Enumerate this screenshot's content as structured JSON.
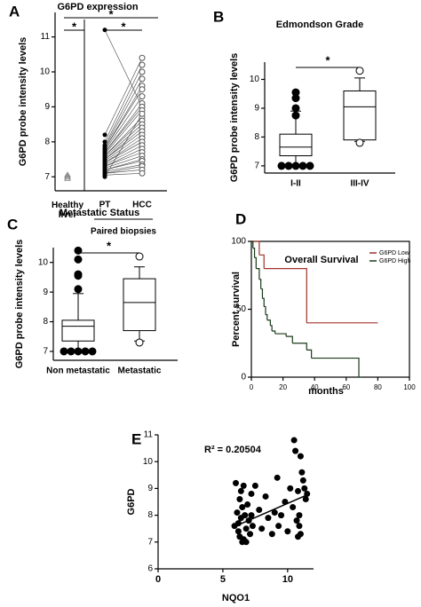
{
  "chart_data": [
    {
      "type": "paired",
      "panel": "A",
      "title": "G6PD expression",
      "ylabel": "G6PD probe intensity levels",
      "categories": [
        "Healthy liver",
        "PT",
        "HCC"
      ],
      "group_label": "Paired biopsies",
      "significance": [
        "*",
        "*",
        "*"
      ],
      "ylim": [
        6.6,
        11.7
      ],
      "yticks": [
        7,
        8,
        9,
        10,
        11
      ],
      "healthy_values": [
        7.0,
        7.05,
        6.95
      ],
      "pt_values": [
        11.2,
        8.2,
        8.0,
        7.9,
        7.85,
        7.8,
        7.8,
        7.75,
        7.7,
        7.7,
        7.65,
        7.6,
        7.6,
        7.55,
        7.5,
        7.5,
        7.45,
        7.4,
        7.4,
        7.35,
        7.3,
        7.3,
        7.25,
        7.2,
        7.2,
        7.15,
        7.1,
        7.1,
        7.05,
        7.0
      ],
      "hcc_values": [
        9.0,
        10.4,
        10.2,
        10.0,
        9.8,
        9.6,
        9.5,
        9.3,
        9.1,
        9.0,
        8.9,
        8.7,
        8.6,
        8.5,
        8.4,
        8.3,
        8.2,
        8.1,
        8.0,
        7.9,
        7.8,
        7.7,
        7.6,
        7.5,
        7.45,
        7.35,
        7.3,
        7.2,
        7.1,
        8.8
      ]
    },
    {
      "type": "box",
      "panel": "B",
      "title": "Edmondson Grade",
      "ylabel": "G6PD probe intensity levels",
      "categories": [
        "I-II",
        "III-IV"
      ],
      "significance": [
        "*"
      ],
      "ylim": [
        6.75,
        10.6
      ],
      "yticks": [
        7,
        8,
        9,
        10
      ],
      "flier_colors": [
        "#000000",
        "#ffffff"
      ],
      "boxes": [
        {
          "whislo": 7.0,
          "q1": 7.35,
          "med": 7.65,
          "q3": 8.1,
          "whishi": 8.9,
          "fliers": [
            9.55,
            9.35,
            9.0,
            8.75,
            7.0,
            7.0,
            7.0,
            7.0,
            7.0
          ]
        },
        {
          "whislo": 7.85,
          "q1": 7.9,
          "med": 9.05,
          "q3": 9.6,
          "whishi": 10.05,
          "fliers": [
            10.3,
            7.8
          ]
        }
      ]
    },
    {
      "type": "box",
      "panel": "C",
      "title": "Metastatic Status",
      "ylabel": "G6PD probe intensity levels",
      "categories": [
        "Non metastatic",
        "Metastatic"
      ],
      "significance": [
        "*"
      ],
      "ylim": [
        6.7,
        10.5
      ],
      "yticks": [
        7,
        8,
        9,
        10
      ],
      "flier_colors": [
        "#000000",
        "#ffffff"
      ],
      "boxes": [
        {
          "whislo": 7.0,
          "q1": 7.35,
          "med": 7.85,
          "q3": 8.05,
          "whishi": 8.95,
          "fliers": [
            10.4,
            10.1,
            9.6,
            9.55,
            9.1,
            7.0,
            7.0,
            7.0,
            7.0,
            7.0
          ]
        },
        {
          "whislo": 7.35,
          "q1": 7.7,
          "med": 8.65,
          "q3": 9.45,
          "whishi": 9.85,
          "fliers": [
            10.2,
            7.3
          ]
        }
      ]
    },
    {
      "type": "step",
      "panel": "D",
      "title": "Overall Survival",
      "ylabel": "Percent survival",
      "xlabel": "months",
      "xlim": [
        0,
        100
      ],
      "xticks": [
        0,
        20,
        40,
        60,
        80,
        100
      ],
      "ylim": [
        0,
        100
      ],
      "yticks": [
        0,
        50,
        100
      ],
      "series": [
        {
          "name": "G6PD Low",
          "color": "#a0332a",
          "x": [
            0,
            5,
            8,
            35,
            80
          ],
          "values": [
            100,
            90,
            80,
            40,
            40
          ]
        },
        {
          "name": "G6PD High",
          "color": "#1a3a1a",
          "x": [
            0,
            1,
            2,
            3,
            5,
            6,
            7,
            8,
            9,
            10,
            12,
            13,
            15,
            22,
            26,
            35,
            38,
            55,
            68,
            70
          ],
          "values": [
            100,
            95,
            88,
            80,
            72,
            65,
            58,
            52,
            46,
            42,
            38,
            34,
            32,
            30,
            25,
            20,
            14,
            14,
            0,
            0
          ]
        }
      ]
    },
    {
      "type": "scatter",
      "panel": "E",
      "ylabel": "G6PD",
      "xlabel": "NQO1",
      "annotation": "R² = 0.20504",
      "xlim": [
        0,
        12
      ],
      "xticks": [
        0,
        5,
        10
      ],
      "ylim": [
        6,
        11
      ],
      "yticks": [
        6,
        7,
        8,
        9,
        10,
        11
      ],
      "x": [
        5.9,
        6.0,
        6.1,
        6.2,
        6.3,
        6.3,
        6.4,
        6.5,
        6.5,
        6.6,
        6.7,
        6.8,
        6.9,
        7.0,
        7.1,
        7.2,
        7.3,
        6.2,
        6.4,
        6.6,
        7.5,
        7.8,
        8.0,
        8.3,
        8.5,
        8.8,
        9.0,
        9.2,
        9.3,
        9.5,
        9.8,
        10.0,
        10.2,
        10.4,
        10.5,
        10.6,
        10.7,
        10.8,
        10.9,
        11.0,
        11.1,
        11.2,
        11.3,
        11.4,
        11.5,
        11.0,
        10.9,
        10.8,
        6.8,
        7.2
      ],
      "values": [
        7.6,
        9.2,
        8.1,
        7.4,
        8.6,
        7.2,
        7.9,
        8.3,
        7.0,
        9.1,
        8.0,
        7.5,
        8.4,
        7.8,
        7.3,
        8.8,
        7.6,
        7.7,
        8.9,
        7.1,
        9.1,
        8.2,
        7.5,
        8.7,
        7.9,
        7.3,
        8.1,
        9.4,
        7.6,
        8.0,
        8.5,
        7.4,
        9.0,
        8.3,
        10.8,
        10.4,
        7.8,
        8.9,
        8.0,
        10.2,
        9.6,
        9.3,
        9.0,
        8.6,
        8.8,
        7.3,
        7.6,
        7.2,
        7.0,
        8.0
      ],
      "trendline": {
        "x": [
          6,
          11.7
        ],
        "values": [
          7.6,
          8.8
        ]
      }
    }
  ]
}
